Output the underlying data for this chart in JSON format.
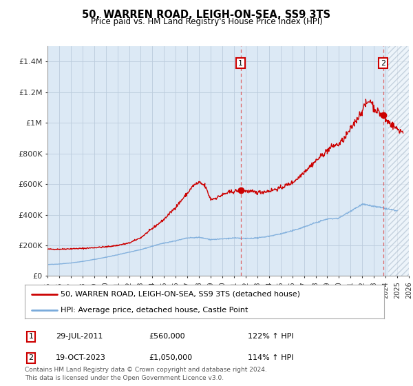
{
  "title": "50, WARREN ROAD, LEIGH-ON-SEA, SS9 3TS",
  "subtitle": "Price paid vs. HM Land Registry's House Price Index (HPI)",
  "legend_line1": "50, WARREN ROAD, LEIGH-ON-SEA, SS9 3TS (detached house)",
  "legend_line2": "HPI: Average price, detached house, Castle Point",
  "footnote": "Contains HM Land Registry data © Crown copyright and database right 2024.\nThis data is licensed under the Open Government Licence v3.0.",
  "sale1_date": "29-JUL-2011",
  "sale1_price": "£560,000",
  "sale1_hpi": "122% ↑ HPI",
  "sale2_date": "19-OCT-2023",
  "sale2_price": "£1,050,000",
  "sale2_hpi": "114% ↑ HPI",
  "red_line_color": "#cc0000",
  "blue_line_color": "#7aabdb",
  "background_color": "#dce9f5",
  "hatch_color": "#c8d8e8",
  "grid_color": "#bbccdd",
  "ylim": [
    0,
    1500000
  ],
  "yticks": [
    0,
    200000,
    400000,
    600000,
    800000,
    1000000,
    1200000,
    1400000
  ],
  "ytick_labels": [
    "£0",
    "£200K",
    "£400K",
    "£600K",
    "£800K",
    "£1M",
    "£1.2M",
    "£1.4M"
  ],
  "sale1_x": 2011.57,
  "sale1_y": 560000,
  "sale2_x": 2023.8,
  "sale2_y": 1050000,
  "vline1_x": 2011.57,
  "vline2_x": 2023.8,
  "hatch_start_x": 2024.25,
  "xmin": 1995,
  "xmax": 2026,
  "xticks": [
    1995,
    1996,
    1997,
    1998,
    1999,
    2000,
    2001,
    2002,
    2003,
    2004,
    2005,
    2006,
    2007,
    2008,
    2009,
    2010,
    2011,
    2012,
    2013,
    2014,
    2015,
    2016,
    2017,
    2018,
    2019,
    2020,
    2021,
    2022,
    2023,
    2024,
    2025,
    2026
  ]
}
